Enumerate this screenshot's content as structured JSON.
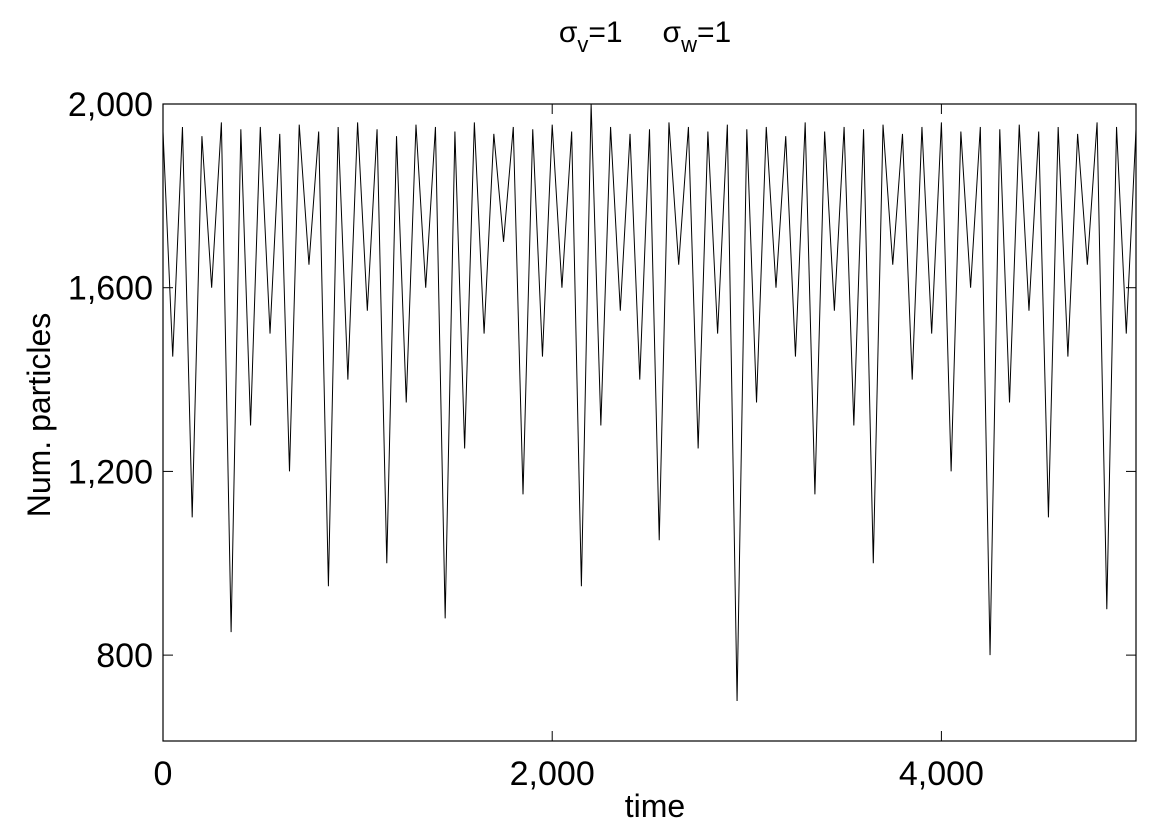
{
  "chart_data": {
    "type": "line",
    "title": [
      {
        "base": "σ",
        "sub": "v",
        "rest": "=1"
      },
      {
        "base": "σ",
        "sub": "w",
        "rest": "=1"
      }
    ],
    "xlabel": "time",
    "ylabel": "Num. particles",
    "x": [
      0,
      50,
      100,
      150,
      200,
      250,
      300,
      350,
      400,
      450,
      500,
      550,
      600,
      650,
      700,
      750,
      800,
      850,
      900,
      950,
      1000,
      1050,
      1100,
      1150,
      1200,
      1250,
      1300,
      1350,
      1400,
      1450,
      1500,
      1550,
      1600,
      1650,
      1700,
      1750,
      1800,
      1850,
      1900,
      1950,
      2000,
      2050,
      2100,
      2150,
      2200,
      2250,
      2300,
      2350,
      2400,
      2450,
      2500,
      2550,
      2600,
      2650,
      2700,
      2750,
      2800,
      2850,
      2900,
      2950,
      3000,
      3050,
      3100,
      3150,
      3200,
      3250,
      3300,
      3350,
      3400,
      3450,
      3500,
      3550,
      3600,
      3650,
      3700,
      3750,
      3800,
      3850,
      3900,
      3950,
      4000,
      4050,
      4100,
      4150,
      4200,
      4250,
      4300,
      4350,
      4400,
      4450,
      4500,
      4550,
      4600,
      4650,
      4700,
      4750,
      4800,
      4850,
      4900,
      4950,
      5000
    ],
    "series": [
      {
        "name": "particles",
        "color": "#000000",
        "values": [
          1940,
          1450,
          1950,
          1100,
          1930,
          1600,
          1960,
          850,
          1945,
          1300,
          1950,
          1500,
          1935,
          1200,
          1955,
          1650,
          1940,
          950,
          1950,
          1400,
          1960,
          1550,
          1945,
          1000,
          1930,
          1350,
          1955,
          1600,
          1950,
          880,
          1940,
          1250,
          1960,
          1500,
          1935,
          1700,
          1950,
          1150,
          1945,
          1450,
          1955,
          1600,
          1940,
          950,
          2000,
          1300,
          1950,
          1550,
          1935,
          1400,
          1945,
          1050,
          1960,
          1650,
          1950,
          1250,
          1940,
          1500,
          1955,
          700,
          1945,
          1350,
          1950,
          1600,
          1930,
          1450,
          1960,
          1150,
          1940,
          1550,
          1950,
          1300,
          1945,
          1000,
          1955,
          1650,
          1935,
          1400,
          1950,
          1500,
          1960,
          1200,
          1940,
          1600,
          1950,
          800,
          1945,
          1350,
          1955,
          1550,
          1940,
          1100,
          1950,
          1450,
          1935,
          1650,
          1960,
          900,
          1950,
          1500,
          1945
        ]
      }
    ],
    "xlim": [
      0,
      5000
    ],
    "xticks": [
      0,
      {
        "value": 2000,
        "label": "2,000"
      },
      {
        "value": 4000,
        "label": "4,000"
      }
    ],
    "ylim": [
      613,
      2000
    ],
    "yticks": [
      {
        "value": 800,
        "label": "800"
      },
      {
        "value": 1200,
        "label": "1,200"
      },
      {
        "value": 1600,
        "label": "1,600"
      },
      {
        "value": 2000,
        "label": "2,000"
      }
    ]
  }
}
